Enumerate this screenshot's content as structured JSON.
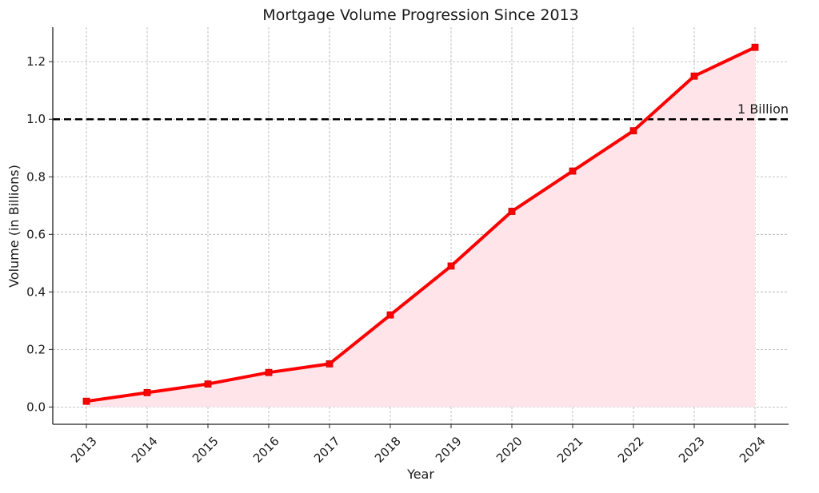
{
  "chart_data": {
    "type": "area",
    "title": "Mortgage Volume Progression Since 2013",
    "xlabel": "Year",
    "ylabel": "Volume (in Billions)",
    "x": [
      "2013",
      "2014",
      "2015",
      "2016",
      "2017",
      "2018",
      "2019",
      "2020",
      "2021",
      "2022",
      "2023",
      "2024"
    ],
    "series": [
      {
        "values": [
          0.02,
          0.05,
          0.08,
          0.12,
          0.15,
          0.32,
          0.49,
          0.68,
          0.82,
          0.96,
          1.15,
          1.25
        ],
        "color": "#ff0000",
        "fill_color": "#ffe4ea",
        "marker": "square"
      }
    ],
    "ylim": [
      -0.06,
      1.32
    ],
    "yticks": [
      0.0,
      0.2,
      0.4,
      0.6,
      0.8,
      1.0,
      1.2
    ],
    "ytick_labels": [
      "0.0",
      "0.2",
      "0.4",
      "0.6",
      "0.8",
      "1.0",
      "1.2"
    ],
    "reference_line": {
      "value": 1.0,
      "label": "1 Billion",
      "style": "dashed",
      "color": "#000000"
    },
    "grid": true,
    "grid_style": "dashed",
    "xtick_rotation": 45
  }
}
